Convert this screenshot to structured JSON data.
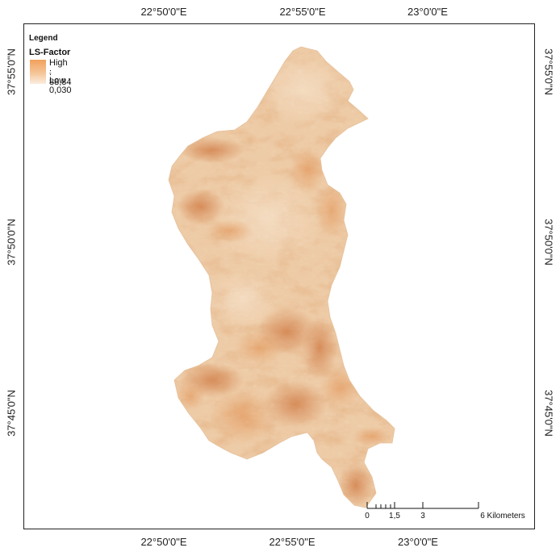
{
  "top_axis": {
    "labels": [
      "22°50'0\"E",
      "22°55'0\"E",
      "23°0'0\"E"
    ]
  },
  "bottom_axis": {
    "labels": [
      "22°50'0\"E",
      "22°55'0\"E",
      "23°0'0\"E"
    ]
  },
  "left_axis": {
    "labels": [
      "37°55'0\"N",
      "37°50'0\"N",
      "37°45'0\"N"
    ]
  },
  "right_axis": {
    "labels": [
      "37°55'0\"N",
      "37°50'0\"N",
      "37°45'0\"N"
    ]
  },
  "legend": {
    "title": "Legend",
    "layer": "LS-Factor",
    "high": "High : 88,84",
    "low": "Low : 0,030",
    "colors": {
      "high": "#f2a15c",
      "mid": "#f5c597",
      "low": "#fbeee0"
    }
  },
  "scalebar": {
    "labels": [
      "0",
      "1,5",
      "3",
      "6 Kilometers"
    ]
  },
  "colors": {
    "terrain_base": "#efd2b0",
    "terrain_light": "#f3dcc0",
    "terrain_dark": "#c0703a",
    "terrain_mid": "#e09a5e"
  }
}
